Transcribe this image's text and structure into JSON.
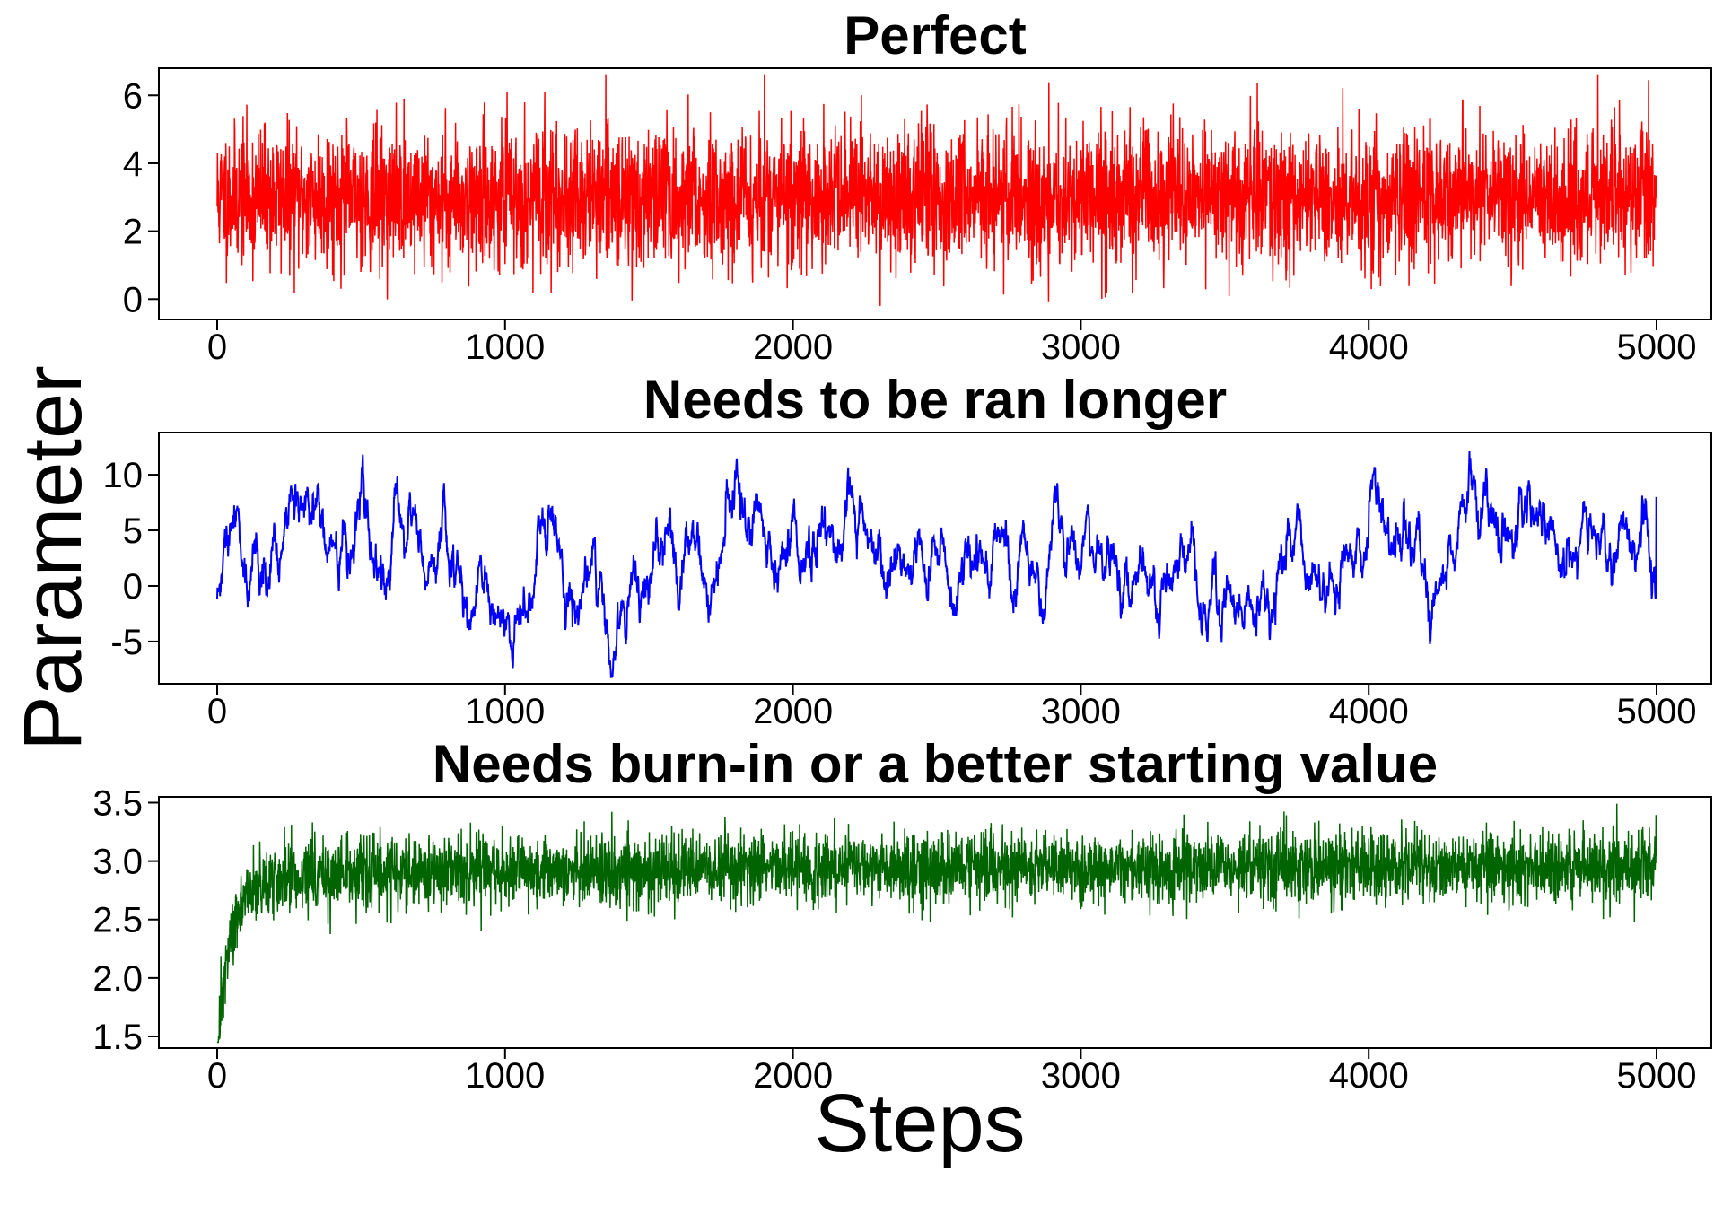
{
  "chart_data": {
    "type": "line",
    "xlabel": "Steps",
    "ylabel": "Parameter",
    "panels": [
      {
        "title": "Perfect",
        "color": "#ff0000",
        "xlim": [
          0,
          5000
        ],
        "ylim": [
          -0.6,
          6.8
        ],
        "xticks": [
          0,
          1000,
          2000,
          3000,
          4000,
          5000
        ],
        "yticks": [
          0,
          2,
          4,
          6
        ],
        "ytick_labels": [
          "0",
          "2",
          "4",
          "6"
        ],
        "series": {
          "n": 5000,
          "kind": "white_noise",
          "mean": 3.0,
          "sd": 1.0,
          "min": -0.3,
          "max": 6.6,
          "seed": 11
        }
      },
      {
        "title": "Needs to be ran longer",
        "color": "#0000ff",
        "xlim": [
          0,
          5000
        ],
        "ylim": [
          -8.8,
          13.8
        ],
        "xticks": [
          0,
          1000,
          2000,
          3000,
          4000,
          5000
        ],
        "yticks": [
          -5,
          0,
          5,
          10
        ],
        "ytick_labels": [
          "-5",
          "0",
          "5",
          "10"
        ],
        "series": {
          "n": 5000,
          "kind": "autocorrelated",
          "mean": 1.5,
          "sd": 3.8,
          "min": -8.2,
          "max": 12.8,
          "start": -1.2,
          "end": 8.0,
          "seed": 29
        }
      },
      {
        "title": "Needs burn-in or a better starting value",
        "color": "#006400",
        "xlim": [
          0,
          5000
        ],
        "ylim": [
          1.4,
          3.55
        ],
        "xticks": [
          0,
          1000,
          2000,
          3000,
          4000,
          5000
        ],
        "yticks": [
          1.5,
          2.0,
          2.5,
          3.0,
          3.5
        ],
        "ytick_labels": [
          "1.5",
          "2.0",
          "2.5",
          "3.0",
          "3.5"
        ],
        "series": {
          "n": 5000,
          "kind": "burn_in",
          "start": 1.45,
          "plateau": 2.95,
          "sd": 0.15,
          "min": 1.45,
          "max": 3.5,
          "seed": 47
        }
      }
    ]
  }
}
